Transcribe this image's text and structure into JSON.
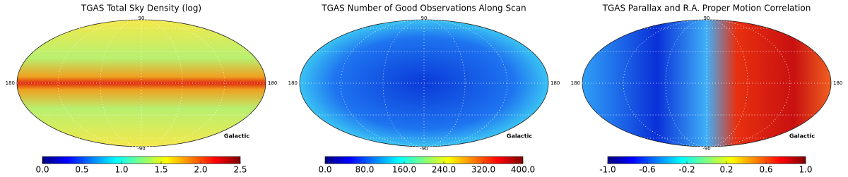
{
  "chart_data": [
    {
      "type": "map",
      "title": "TGAS Total Sky Density (log)",
      "lat_labels": [
        "90",
        "-90"
      ],
      "lon_labels": [
        "180",
        "180"
      ],
      "frame_label": "Galactic",
      "colorbar": {
        "colormap": "jet",
        "lim": [
          0,
          2.5
        ],
        "ticks": [
          {
            "value": 0,
            "label": "0.0"
          },
          {
            "value": 0.5,
            "label": "0.5"
          },
          {
            "value": 1,
            "label": "1.0"
          },
          {
            "value": 1.5,
            "label": "1.5"
          },
          {
            "value": 2,
            "label": "2.0"
          },
          {
            "value": 2.5,
            "label": "2.5"
          }
        ]
      }
    },
    {
      "type": "map",
      "title": "TGAS Number of Good Observations Along Scan",
      "lat_labels": [
        "90",
        "-90"
      ],
      "lon_labels": [
        "180",
        "180"
      ],
      "frame_label": "Galactic",
      "colorbar": {
        "colormap": "jet",
        "lim": [
          0,
          400
        ],
        "ticks": [
          {
            "value": 0,
            "label": "0.0"
          },
          {
            "value": 80,
            "label": "80.0"
          },
          {
            "value": 160,
            "label": "160.0"
          },
          {
            "value": 240,
            "label": "240.0"
          },
          {
            "value": 320,
            "label": "320.0"
          },
          {
            "value": 400,
            "label": "400.0"
          }
        ]
      }
    },
    {
      "type": "map",
      "title": "TGAS Parallax and R.A. Proper Motion Correlation",
      "lat_labels": [
        "90",
        "-90"
      ],
      "lon_labels": [
        "180",
        "180"
      ],
      "frame_label": "Galactic",
      "colorbar": {
        "colormap": "jet",
        "lim": [
          -1,
          1
        ],
        "ticks": [
          {
            "value": -1,
            "label": "-1.0"
          },
          {
            "value": -0.6,
            "label": "-0.6"
          },
          {
            "value": -0.2,
            "label": "-0.2"
          },
          {
            "value": 0.2,
            "label": "0.2"
          },
          {
            "value": 0.6,
            "label": "0.6"
          },
          {
            "value": 1,
            "label": "1.0"
          }
        ]
      }
    }
  ]
}
